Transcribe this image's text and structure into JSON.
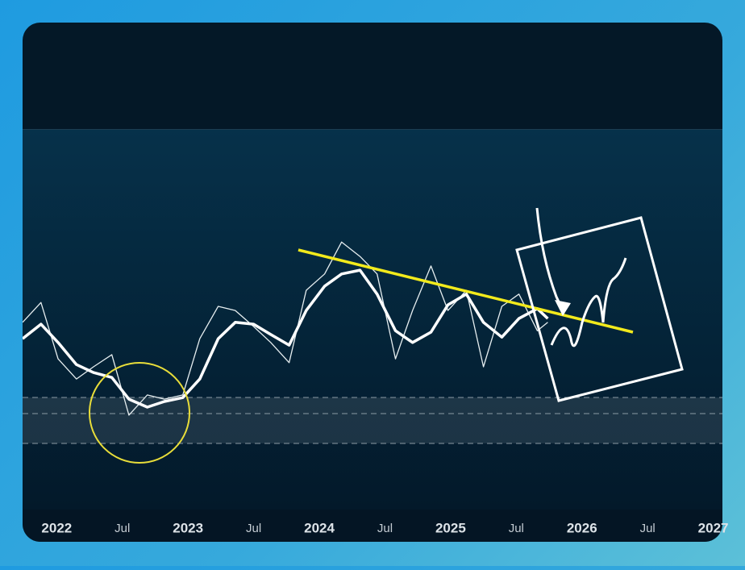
{
  "chart_data": {
    "type": "line",
    "x": [
      2021.74,
      2021.88,
      2022.01,
      2022.15,
      2022.28,
      2022.42,
      2022.55,
      2022.69,
      2022.82,
      2022.96,
      2023.09,
      2023.23,
      2023.36,
      2023.5,
      2023.63,
      2023.77,
      2023.9,
      2024.04,
      2024.17,
      2024.31,
      2024.44,
      2024.58,
      2024.71,
      2024.85,
      2024.98,
      2025.12,
      2025.25,
      2025.39,
      2025.52,
      2025.66,
      2025.74
    ],
    "series": [
      {
        "color": "#e6eef0",
        "width": 1.3,
        "values": [
          49.2,
          54.4,
          39.6,
          34.3,
          37.5,
          40.7,
          24.8,
          30.1,
          29.0,
          30.1,
          44.9,
          53.4,
          52.3,
          48.1,
          43.9,
          38.6,
          57.6,
          61.9,
          70.3,
          66.5,
          61.9,
          39.6,
          52.3,
          64.0,
          52.3,
          57.6,
          37.5,
          53.4,
          56.6,
          47.0,
          49.2
        ]
      },
      {
        "color": "#ffffff",
        "width": 3.5,
        "values": [
          44.9,
          48.7,
          43.9,
          38.1,
          36.0,
          34.7,
          29.0,
          26.9,
          28.4,
          29.4,
          34.3,
          44.9,
          49.2,
          48.7,
          46.0,
          43.2,
          52.3,
          58.7,
          61.9,
          62.9,
          56.6,
          47.0,
          43.9,
          46.6,
          53.8,
          56.6,
          49.2,
          45.3,
          50.2,
          52.8,
          50.2
        ]
      }
    ],
    "xlim": [
      2021.74,
      2027.07
    ],
    "xticks": [
      {
        "value": 2022,
        "label": "2022"
      },
      {
        "value": 2022.5,
        "label": "Jul"
      },
      {
        "value": 2023,
        "label": "2023"
      },
      {
        "value": 2023.5,
        "label": "Jul"
      },
      {
        "value": 2024,
        "label": "2024"
      },
      {
        "value": 2024.5,
        "label": "Jul"
      },
      {
        "value": 2025,
        "label": "2025"
      },
      {
        "value": 2025.5,
        "label": "Jul"
      },
      {
        "value": 2026,
        "label": "2026"
      },
      {
        "value": 2026.5,
        "label": "Jul"
      },
      {
        "value": 2027,
        "label": "2027"
      }
    ],
    "ylim": [
      0,
      100
    ]
  }
}
